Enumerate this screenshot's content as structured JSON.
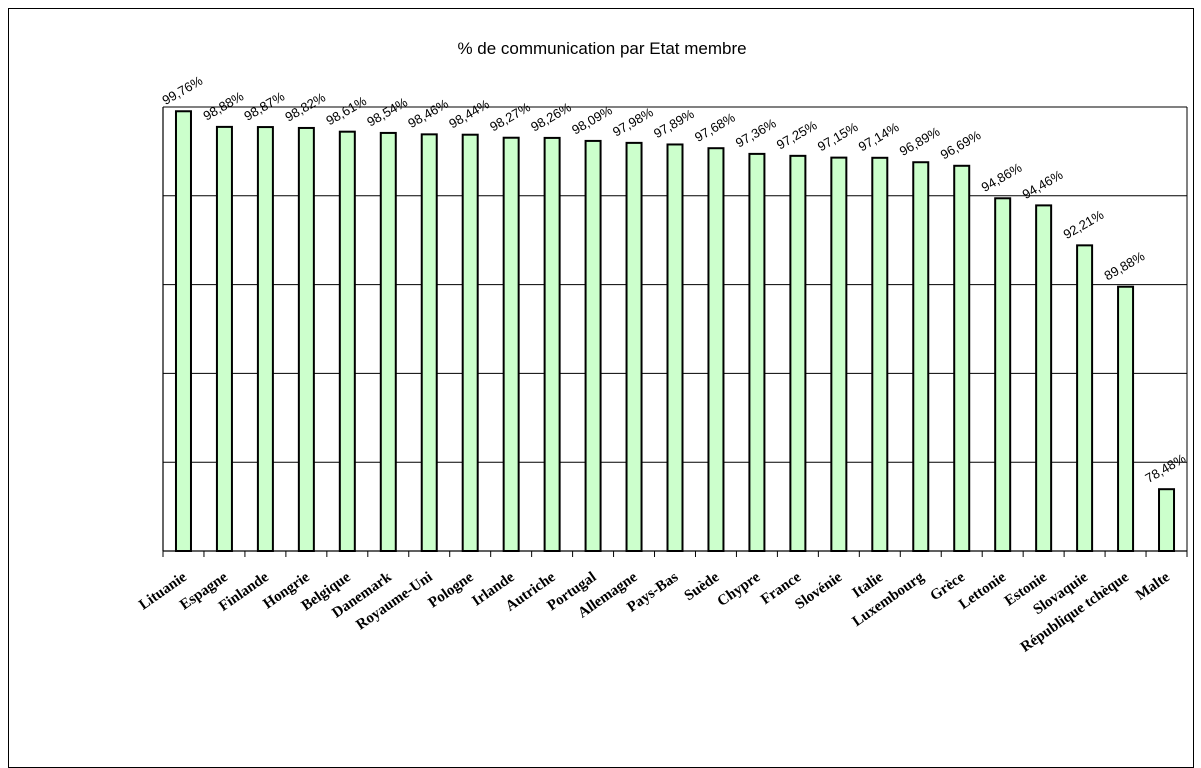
{
  "chart_data": {
    "type": "bar",
    "title": "% de communication par Etat membre",
    "xlabel": "",
    "ylabel": "",
    "ylim": [
      75,
      100
    ],
    "grid": true,
    "legend": "none",
    "bar_color": "#ccffcc",
    "categories": [
      "Lituanie",
      "Espagne",
      "Finlande",
      "Hongrie",
      "Belgique",
      "Danemark",
      "Royaume-Uni",
      "Pologne",
      "Irlande",
      "Autriche",
      "Portugal",
      "Allemagne",
      "Pays-Bas",
      "Suède",
      "Chypre",
      "France",
      "Slovénie",
      "Italie",
      "Luxembourg",
      "Grèce",
      "Lettonie",
      "Estonie",
      "Slovaquie",
      "République tchèque",
      "Malte"
    ],
    "values": [
      99.76,
      98.88,
      98.87,
      98.82,
      98.61,
      98.54,
      98.46,
      98.44,
      98.27,
      98.26,
      98.09,
      97.98,
      97.89,
      97.68,
      97.36,
      97.25,
      97.15,
      97.14,
      96.89,
      96.69,
      94.86,
      94.46,
      92.21,
      89.88,
      78.48
    ],
    "data_labels": [
      "99,76%",
      "98,88%",
      "98,87%",
      "98,82%",
      "98,61%",
      "98,54%",
      "98,46%",
      "98,44%",
      "98,27%",
      "98,26%",
      "98,09%",
      "97,98%",
      "97,89%",
      "97,68%",
      "97,36%",
      "97,25%",
      "97,15%",
      "97,14%",
      "96,89%",
      "96,69%",
      "94,86%",
      "94,46%",
      "92,21%",
      "89,88%",
      "78,48%"
    ]
  }
}
